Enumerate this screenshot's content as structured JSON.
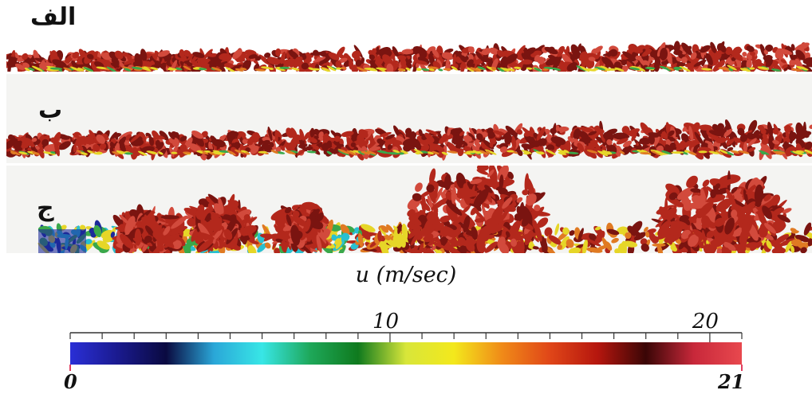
{
  "panels": [
    {
      "label": "الف"
    },
    {
      "label": "ب"
    },
    {
      "label": "ج"
    }
  ],
  "colorbar": {
    "title": "u (m/sec)",
    "min": 0,
    "max": 21,
    "min_label": "0",
    "max_label": "21",
    "major_ticks": [
      10,
      20
    ],
    "major_labels": [
      "10",
      "20"
    ],
    "minor_tick_step": 1,
    "colors": [
      "#2a2fd6",
      "#1a1a8e",
      "#0a0a40",
      "#2aa7d8",
      "#38e6e6",
      "#1ea85a",
      "#0f7a1e",
      "#d8e63a",
      "#f3e81c",
      "#f08a18",
      "#e04618",
      "#b5160e",
      "#3a0606",
      "#c8283a",
      "#e8484e"
    ]
  },
  "scene": {
    "colors": {
      "dark_red": "#7a1410",
      "red": "#b3281c",
      "light_red": "#d24a3c",
      "orange": "#e07a22",
      "yellow": "#e6d628",
      "green": "#3aa84a",
      "cyan": "#2ac0d0",
      "blue": "#1c2a9a"
    }
  }
}
